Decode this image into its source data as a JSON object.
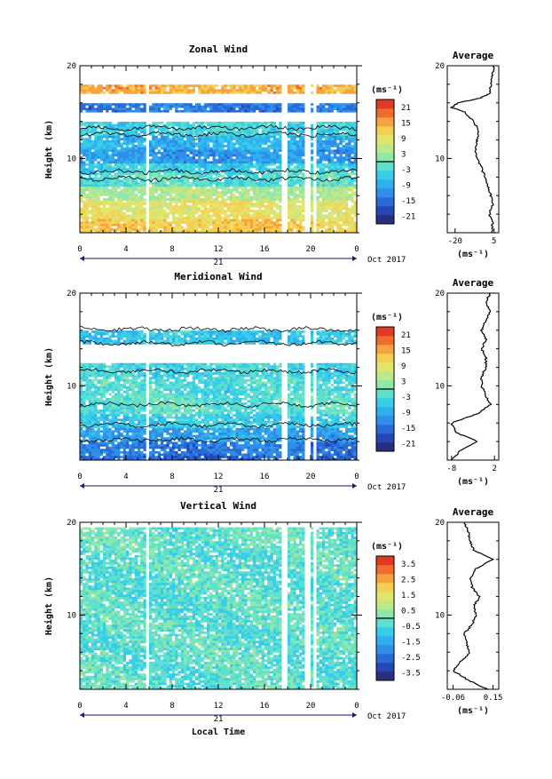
{
  "colors": {
    "scale": [
      "#2b2d7e",
      "#2447b6",
      "#2a6ad8",
      "#2f8ee8",
      "#2fb0ee",
      "#37cde8",
      "#5fe0cf",
      "#8fe7aa",
      "#bfe78a",
      "#e3e46c",
      "#f5cf52",
      "#f6a23e",
      "#ef6b2e",
      "#e03a22"
    ],
    "white": "#ffffff",
    "axis": "#000000",
    "time_axis": "#1e1a6e"
  },
  "chart_data": [
    {
      "type": "heatmap",
      "title": "Zonal Wind",
      "ylabel": "Height (km)",
      "ylim": [
        2,
        20
      ],
      "xlim": [
        0,
        24
      ],
      "y_ticks": [
        "10",
        "20"
      ],
      "x_ticks": [
        "0",
        "4",
        "8",
        "12",
        "16",
        "20",
        "0"
      ],
      "x_ticks_values": [
        0,
        4,
        8,
        12,
        16,
        20,
        24
      ],
      "date_label": "21",
      "month_label": "Oct 2017",
      "colorbar": {
        "unit": "(ms⁻¹)",
        "ticks": [
          "21",
          "15",
          "9",
          "3",
          "-3",
          "-9",
          "-15",
          "-21"
        ],
        "range": [
          -24,
          24
        ]
      },
      "profile": {
        "title": "Average",
        "x_ticks": [
          "-20",
          "5"
        ],
        "xlim": [
          -25,
          8
        ],
        "unit": "(ms⁻¹)",
        "heights": [
          2,
          3,
          4,
          5,
          6,
          7,
          8,
          9,
          10,
          11,
          12,
          13,
          14,
          15,
          15.5,
          16,
          16.5,
          17,
          18,
          19,
          20
        ],
        "values": [
          4,
          4,
          2,
          4,
          3,
          1,
          -1,
          -3,
          -6,
          -7,
          -6,
          -5,
          -8,
          -14,
          -22,
          -18,
          -4,
          2,
          3,
          4,
          5
        ]
      }
    },
    {
      "type": "heatmap",
      "title": "Meridional Wind",
      "ylabel": "Height (km)",
      "ylim": [
        2,
        20
      ],
      "xlim": [
        0,
        24
      ],
      "y_ticks": [
        "10",
        "20"
      ],
      "x_ticks": [
        "0",
        "4",
        "8",
        "12",
        "16",
        "20",
        "0"
      ],
      "x_ticks_values": [
        0,
        4,
        8,
        12,
        16,
        20,
        24
      ],
      "date_label": "21",
      "month_label": "Oct 2017",
      "colorbar": {
        "unit": "(ms⁻¹)",
        "ticks": [
          "21",
          "15",
          "9",
          "3",
          "-3",
          "-9",
          "-15",
          "-21"
        ],
        "range": [
          -24,
          24
        ]
      },
      "profile": {
        "title": "Average",
        "x_ticks": [
          "-8",
          "2"
        ],
        "xlim": [
          -9,
          3
        ],
        "unit": "(ms⁻¹)",
        "heights": [
          2,
          3,
          4,
          5,
          6,
          7,
          8,
          9,
          10,
          11,
          12,
          13,
          14,
          15,
          16,
          17,
          18,
          19,
          20
        ],
        "values": [
          -8,
          -6,
          -2,
          -7,
          -8,
          -2,
          1,
          0,
          -1,
          -1,
          0,
          0,
          -1,
          0,
          -1,
          0,
          1,
          0,
          1
        ]
      }
    },
    {
      "type": "heatmap",
      "title": "Vertical Wind",
      "ylabel": "Height (km)",
      "xlabel": "Local Time",
      "ylim": [
        2,
        20
      ],
      "xlim": [
        0,
        24
      ],
      "y_ticks": [
        "10",
        "20"
      ],
      "x_ticks": [
        "0",
        "4",
        "8",
        "12",
        "16",
        "20",
        "0"
      ],
      "x_ticks_values": [
        0,
        4,
        8,
        12,
        16,
        20,
        24
      ],
      "date_label": "21",
      "month_label": "Oct 2017",
      "colorbar": {
        "unit": "(ms⁻¹)",
        "ticks": [
          "3.5",
          "2.5",
          "1.5",
          "0.5",
          "-0.5",
          "-1.5",
          "-2.5",
          "-3.5"
        ],
        "range": [
          -4,
          4
        ]
      },
      "profile": {
        "title": "Average",
        "x_ticks": [
          "-0.06",
          "0.15"
        ],
        "xlim": [
          -0.09,
          0.18
        ],
        "unit": "(ms⁻¹)",
        "heights": [
          2,
          3,
          4,
          5,
          6,
          7,
          8,
          9,
          10,
          11,
          12,
          13,
          14,
          15,
          16,
          17,
          18,
          19,
          20
        ],
        "values": [
          0.12,
          0.02,
          -0.06,
          -0.02,
          0.03,
          0.01,
          0.0,
          0.04,
          0.06,
          0.05,
          0.08,
          0.04,
          0.03,
          0.06,
          0.15,
          0.05,
          0.03,
          0.02,
          0.0
        ]
      }
    }
  ]
}
